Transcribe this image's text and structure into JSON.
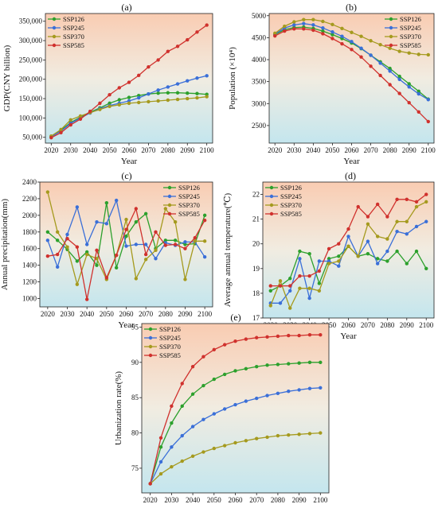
{
  "colors": {
    "SSP126": "#2ca02c",
    "SSP245": "#3a6fd8",
    "SSP370": "#a59a1e",
    "SSP585": "#d0312d"
  },
  "chart_data": [
    {
      "panel": "(a)",
      "type": "line",
      "xlabel": "Year",
      "ylabel": "GDP(CNY billion)",
      "xlim": [
        2017,
        2103
      ],
      "ylim": [
        35000,
        370000
      ],
      "xticks": [
        2020,
        2030,
        2040,
        2050,
        2060,
        2070,
        2080,
        2090,
        2100
      ],
      "yticks": [
        50000,
        100000,
        150000,
        200000,
        250000,
        300000,
        350000
      ],
      "ytick_labels": [
        "50,000",
        "100,000",
        "150,000",
        "200,000",
        "250,000",
        "300,000",
        "350,000"
      ],
      "background": "gradient",
      "legend": "top-left",
      "x": [
        2020,
        2025,
        2030,
        2035,
        2040,
        2045,
        2050,
        2055,
        2060,
        2065,
        2070,
        2075,
        2080,
        2085,
        2090,
        2095,
        2100
      ],
      "series": [
        {
          "name": "SSP126",
          "values": [
            52000,
            68000,
            88000,
            102000,
            115000,
            126000,
            138000,
            147000,
            153000,
            158000,
            162000,
            164000,
            165000,
            165000,
            164000,
            163000,
            161000
          ]
        },
        {
          "name": "SSP245",
          "values": [
            51000,
            66000,
            86000,
            100000,
            113000,
            124000,
            132000,
            138000,
            144000,
            152000,
            162000,
            172000,
            180000,
            188000,
            196000,
            203000,
            209000
          ]
        },
        {
          "name": "SSP370",
          "values": [
            53000,
            70000,
            95000,
            105000,
            114000,
            122000,
            130000,
            134000,
            138000,
            140000,
            142000,
            144000,
            146000,
            148000,
            150000,
            152000,
            155000
          ]
        },
        {
          "name": "SSP585",
          "values": [
            49000,
            62000,
            82000,
            97000,
            117000,
            138000,
            160000,
            178000,
            192000,
            210000,
            232000,
            250000,
            272000,
            285000,
            302000,
            322000,
            340000
          ]
        }
      ]
    },
    {
      "panel": "(b)",
      "type": "line",
      "xlabel": "Year",
      "ylabel": "Population (×10⁴)",
      "xlim": [
        2017,
        2103
      ],
      "ylim": [
        2100,
        5050
      ],
      "xticks": [
        2020,
        2030,
        2040,
        2050,
        2060,
        2070,
        2080,
        2090,
        2100
      ],
      "yticks": [
        2500,
        3000,
        3500,
        4000,
        4500,
        5000
      ],
      "ytick_labels": [
        "2500",
        "3000",
        "3500",
        "4000",
        "4500",
        "5000"
      ],
      "background": "gradient",
      "legend": "top-right",
      "x": [
        2020,
        2025,
        2030,
        2035,
        2040,
        2045,
        2050,
        2055,
        2060,
        2065,
        2070,
        2075,
        2080,
        2085,
        2090,
        2095,
        2100
      ],
      "series": [
        {
          "name": "SSP126",
          "values": [
            4570,
            4680,
            4730,
            4740,
            4710,
            4650,
            4570,
            4480,
            4380,
            4250,
            4100,
            3950,
            3800,
            3620,
            3450,
            3280,
            3100
          ]
        },
        {
          "name": "SSP245",
          "values": [
            4580,
            4720,
            4790,
            4820,
            4790,
            4720,
            4630,
            4530,
            4410,
            4260,
            4100,
            3920,
            3740,
            3550,
            3380,
            3220,
            3090
          ]
        },
        {
          "name": "SSP370",
          "values": [
            4600,
            4760,
            4860,
            4910,
            4910,
            4870,
            4800,
            4710,
            4620,
            4530,
            4430,
            4340,
            4260,
            4190,
            4150,
            4120,
            4110
          ]
        },
        {
          "name": "SSP585",
          "values": [
            4540,
            4650,
            4700,
            4700,
            4670,
            4590,
            4480,
            4360,
            4230,
            4060,
            3850,
            3640,
            3430,
            3230,
            3020,
            2810,
            2590
          ]
        }
      ]
    },
    {
      "panel": "(c)",
      "type": "line",
      "xlabel": "Year",
      "ylabel": "Annual precipitation(mm)",
      "xlim": [
        2016,
        2104
      ],
      "ylim": [
        900,
        2400
      ],
      "xticks": [
        2020,
        2030,
        2040,
        2050,
        2060,
        2070,
        2080,
        2090,
        2100
      ],
      "yticks": [
        1000,
        1200,
        1400,
        1600,
        1800,
        2000,
        2200,
        2400
      ],
      "ytick_labels": [
        "1000",
        "1200",
        "1400",
        "1600",
        "1800",
        "2000",
        "2200",
        "2400"
      ],
      "background": "gradient",
      "legend": "top-right",
      "x": [
        2020,
        2025,
        2030,
        2035,
        2040,
        2045,
        2050,
        2055,
        2060,
        2065,
        2070,
        2075,
        2080,
        2085,
        2090,
        2095,
        2100
      ],
      "series": [
        {
          "name": "SSP126",
          "values": [
            1800,
            1700,
            1590,
            1450,
            1560,
            1400,
            2150,
            1370,
            1750,
            1920,
            2020,
            1600,
            1700,
            1700,
            1650,
            1660,
            2000
          ]
        },
        {
          "name": "SSP245",
          "values": [
            1700,
            1380,
            1770,
            2100,
            1650,
            1920,
            1900,
            2180,
            1630,
            1650,
            1650,
            1480,
            1670,
            1640,
            1680,
            1680,
            1500
          ]
        },
        {
          "name": "SSP370",
          "values": [
            2280,
            1800,
            1620,
            1170,
            1530,
            1480,
            1230,
            1520,
            1950,
            1240,
            1470,
            1580,
            2080,
            1920,
            1230,
            1690,
            1690
          ]
        },
        {
          "name": "SSP585",
          "values": [
            1510,
            1530,
            1720,
            1620,
            990,
            1580,
            1250,
            1520,
            1830,
            2080,
            1530,
            1800,
            1640,
            1650,
            1600,
            1730,
            1940
          ]
        }
      ]
    },
    {
      "panel": "(d)",
      "type": "line",
      "xlabel": "Year",
      "ylabel": "Average annual temperature(℃)",
      "xlim": [
        2016,
        2104
      ],
      "ylim": [
        17,
        22.5
      ],
      "xticks": [
        2020,
        2030,
        2040,
        2050,
        2060,
        2070,
        2080,
        2090,
        2100
      ],
      "yticks": [
        17,
        18,
        19,
        20,
        21,
        22
      ],
      "ytick_labels": [
        "17",
        "18",
        "19",
        "20",
        "21",
        "22"
      ],
      "background": "gradient",
      "legend": "top-left",
      "x": [
        2020,
        2025,
        2030,
        2035,
        2040,
        2045,
        2050,
        2055,
        2060,
        2065,
        2070,
        2075,
        2080,
        2085,
        2090,
        2095,
        2100
      ],
      "series": [
        {
          "name": "SSP126",
          "values": [
            18.1,
            18.3,
            18.6,
            19.7,
            19.6,
            18.4,
            19.4,
            19.5,
            19.9,
            19.5,
            19.6,
            19.4,
            19.3,
            19.7,
            19.2,
            19.7,
            19.0
          ]
        },
        {
          "name": "SSP245",
          "values": [
            17.6,
            17.6,
            18.1,
            19.4,
            17.8,
            19.3,
            19.3,
            19.1,
            20.3,
            19.5,
            20.1,
            19.2,
            19.7,
            20.5,
            20.4,
            20.7,
            20.9
          ]
        },
        {
          "name": "SSP370",
          "values": [
            17.5,
            18.5,
            17.4,
            18.2,
            18.2,
            18.1,
            19.2,
            19.3,
            19.9,
            19.5,
            20.8,
            20.3,
            20.2,
            20.9,
            20.9,
            21.5,
            21.7
          ]
        },
        {
          "name": "SSP585",
          "values": [
            18.3,
            18.3,
            18.3,
            18.7,
            18.7,
            18.9,
            19.8,
            20.0,
            20.6,
            21.5,
            21.1,
            21.6,
            21.1,
            21.8,
            21.8,
            21.7,
            22.0
          ]
        }
      ]
    },
    {
      "panel": "(e)",
      "type": "line",
      "xlabel": "Year",
      "ylabel": "Urbanization rate(%)",
      "xlim": [
        2016,
        2104
      ],
      "ylim": [
        71.5,
        95.5
      ],
      "xticks": [
        2020,
        2030,
        2040,
        2050,
        2060,
        2070,
        2080,
        2090,
        2100
      ],
      "yticks": [
        75,
        80,
        85,
        90,
        95
      ],
      "ytick_labels": [
        "75",
        "80",
        "85",
        "90",
        "95"
      ],
      "background": "gradient",
      "legend": "top-left",
      "x": [
        2020,
        2025,
        2030,
        2035,
        2040,
        2045,
        2050,
        2055,
        2060,
        2065,
        2070,
        2075,
        2080,
        2085,
        2090,
        2095,
        2100
      ],
      "series": [
        {
          "name": "SSP126",
          "values": [
            72.8,
            78.0,
            81.4,
            83.8,
            85.5,
            86.7,
            87.6,
            88.3,
            88.8,
            89.1,
            89.4,
            89.6,
            89.7,
            89.8,
            89.9,
            90.0,
            90.0
          ]
        },
        {
          "name": "SSP245",
          "values": [
            72.8,
            75.9,
            78.0,
            79.6,
            80.9,
            81.9,
            82.7,
            83.4,
            84.0,
            84.5,
            84.9,
            85.3,
            85.6,
            85.9,
            86.1,
            86.3,
            86.4
          ]
        },
        {
          "name": "SSP370",
          "values": [
            72.8,
            74.2,
            75.2,
            76.0,
            76.7,
            77.3,
            77.8,
            78.2,
            78.6,
            78.9,
            79.2,
            79.4,
            79.6,
            79.7,
            79.8,
            79.9,
            80.0
          ]
        },
        {
          "name": "SSP585",
          "values": [
            72.8,
            79.3,
            83.8,
            87.0,
            89.4,
            90.8,
            91.8,
            92.5,
            93.0,
            93.3,
            93.5,
            93.6,
            93.7,
            93.8,
            93.8,
            93.9,
            93.9
          ]
        }
      ]
    }
  ]
}
